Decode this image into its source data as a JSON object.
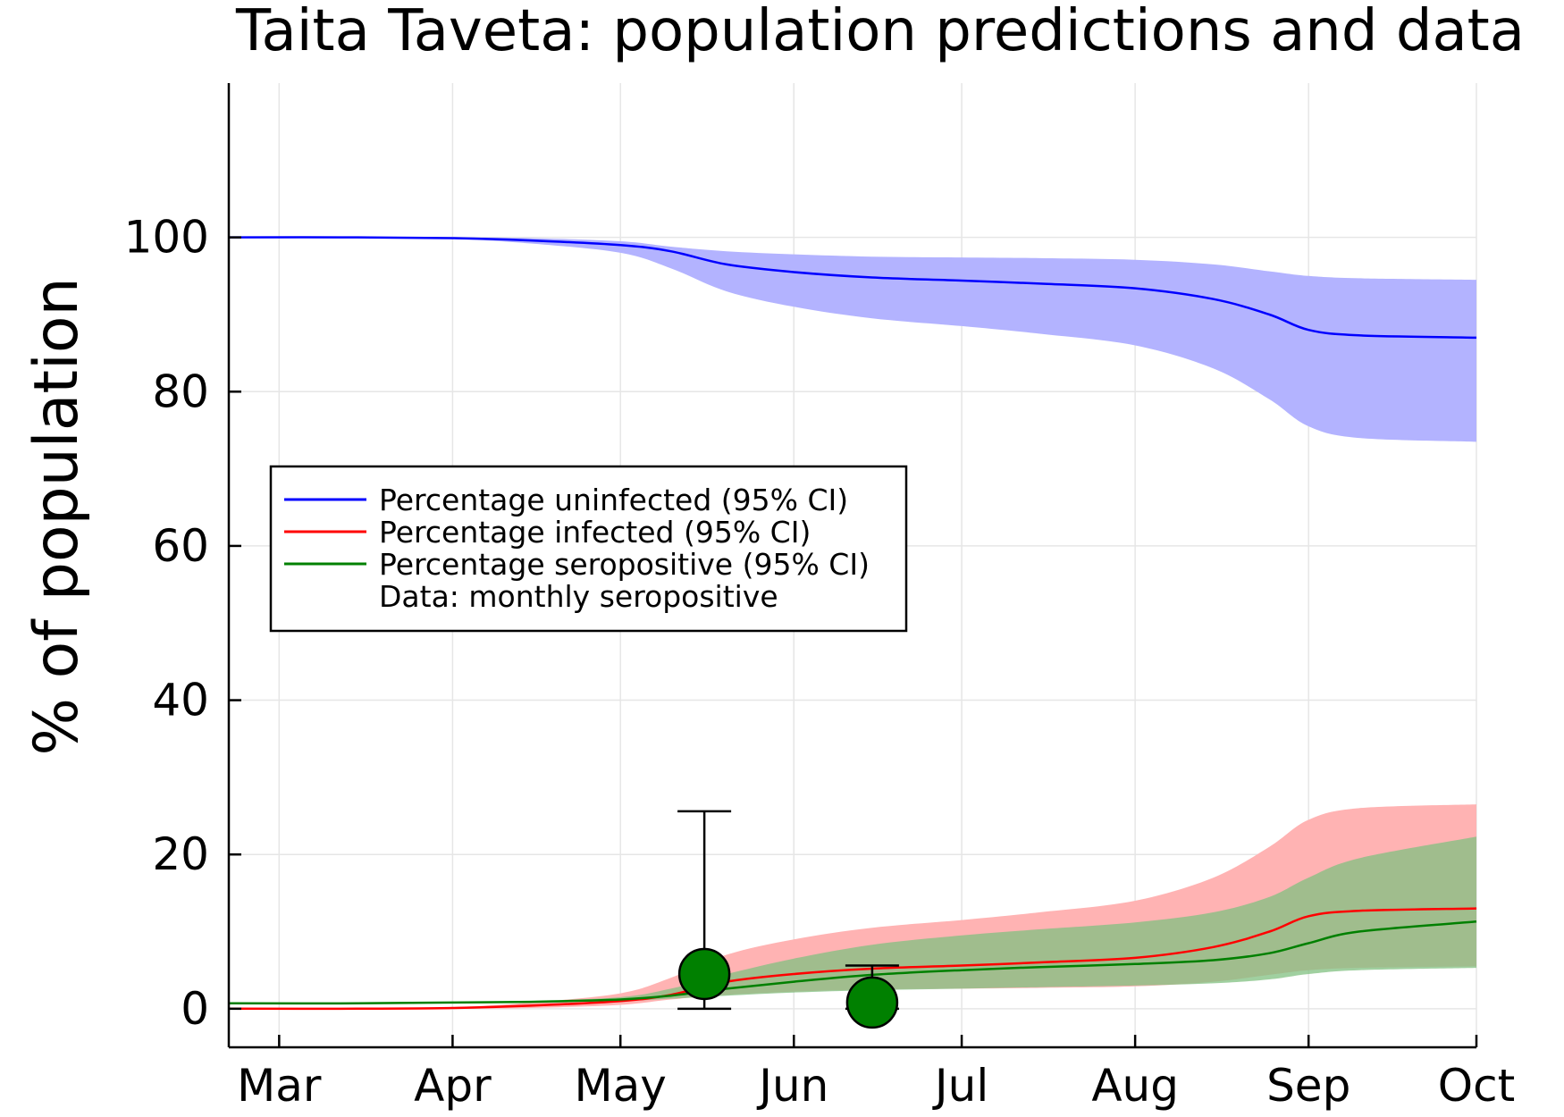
{
  "chart_data": {
    "type": "line",
    "title": "Taita Taveta: population predictions and data",
    "xlabel": "",
    "ylabel": "% of population",
    "x_ticks": [
      "Mar",
      "Apr",
      "May",
      "Jun",
      "Jul",
      "Aug",
      "Sep",
      "Oct"
    ],
    "x_tick_dates": [
      "2020-03-01",
      "2020-04-01",
      "2020-05-01",
      "2020-06-01",
      "2020-07-01",
      "2020-08-01",
      "2020-09-01",
      "2020-10-01"
    ],
    "xlim": [
      "2020-02-21",
      "2020-10-01"
    ],
    "y_ticks": [
      0,
      20,
      40,
      60,
      80,
      100
    ],
    "ylim": [
      -5,
      120
    ],
    "grid": true,
    "legend_position": "center-left",
    "series": [
      {
        "name": "Percentage uninfected (95% CI)",
        "color": "#0000ff",
        "band_color": "#b3b3ff",
        "x": [
          "2020-02-21",
          "2020-03-15",
          "2020-04-01",
          "2020-04-15",
          "2020-05-01",
          "2020-05-10",
          "2020-05-20",
          "2020-06-01",
          "2020-06-15",
          "2020-07-01",
          "2020-07-15",
          "2020-08-01",
          "2020-08-15",
          "2020-08-25",
          "2020-09-01",
          "2020-09-10",
          "2020-10-01"
        ],
        "values": [
          100,
          100,
          99.9,
          99.6,
          99,
          98.2,
          96.5,
          95.5,
          94.8,
          94.4,
          94,
          93.4,
          92,
          90,
          88,
          87.3,
          87
        ],
        "lower": [
          100,
          100,
          99.8,
          99.2,
          98,
          96,
          93,
          91,
          89.5,
          88.5,
          87.5,
          86,
          83,
          79,
          75.5,
          74,
          73.5
        ],
        "upper": [
          100,
          100,
          100,
          99.9,
          99.5,
          98.8,
          98.2,
          97.8,
          97.5,
          97.4,
          97.3,
          97.1,
          96.5,
          95.6,
          95,
          94.7,
          94.5
        ]
      },
      {
        "name": "Percentage infected (95% CI)",
        "color": "#ff0000",
        "band_color": "#ffb3b3",
        "x": [
          "2020-02-21",
          "2020-03-15",
          "2020-04-01",
          "2020-04-15",
          "2020-05-01",
          "2020-05-10",
          "2020-05-20",
          "2020-06-01",
          "2020-06-15",
          "2020-07-01",
          "2020-07-15",
          "2020-08-01",
          "2020-08-15",
          "2020-08-25",
          "2020-09-01",
          "2020-09-10",
          "2020-10-01"
        ],
        "values": [
          0,
          0,
          0.1,
          0.4,
          1,
          1.8,
          3.5,
          4.5,
          5.2,
          5.6,
          6,
          6.6,
          8,
          10,
          12,
          12.7,
          13
        ],
        "lower": [
          0,
          0,
          0,
          0.1,
          0.5,
          1.2,
          1.8,
          2.2,
          2.5,
          2.6,
          2.7,
          2.9,
          3.5,
          4.4,
          5,
          5.3,
          5.5
        ],
        "upper": [
          0,
          0,
          0.2,
          0.8,
          2,
          4,
          7,
          9,
          10.5,
          11.5,
          12.5,
          14,
          17,
          21,
          24.5,
          26,
          26.5
        ]
      },
      {
        "name": "Percentage seropositive (95% CI)",
        "color": "#008000",
        "band_color": "#80c080",
        "x": [
          "2020-02-21",
          "2020-03-15",
          "2020-04-01",
          "2020-04-15",
          "2020-05-01",
          "2020-05-10",
          "2020-05-20",
          "2020-06-01",
          "2020-06-15",
          "2020-07-01",
          "2020-07-15",
          "2020-08-01",
          "2020-08-15",
          "2020-08-25",
          "2020-09-01",
          "2020-09-10",
          "2020-10-01"
        ],
        "values": [
          0.7,
          0.7,
          0.8,
          0.9,
          1.2,
          1.7,
          2.6,
          3.5,
          4.4,
          5,
          5.4,
          5.8,
          6.3,
          7.2,
          8.5,
          10,
          11.3
        ],
        "lower": [
          0.7,
          0.7,
          0.7,
          0.8,
          1,
          1.3,
          1.7,
          2.1,
          2.4,
          2.6,
          2.8,
          3,
          3.3,
          3.8,
          4.5,
          5,
          5.3
        ],
        "upper": [
          0.7,
          0.7,
          0.8,
          1,
          1.5,
          2.6,
          4.5,
          6.5,
          8.3,
          9.5,
          10.3,
          11.2,
          12.5,
          14.5,
          17,
          19.5,
          22.3
        ]
      }
    ],
    "points": {
      "name": "Data: monthly seropositive",
      "color": "#008000",
      "x": [
        "2020-05-16",
        "2020-06-15"
      ],
      "values": [
        4.5,
        0.8
      ],
      "error_low": [
        0,
        0
      ],
      "error_high": [
        25.6,
        5.6
      ]
    }
  }
}
